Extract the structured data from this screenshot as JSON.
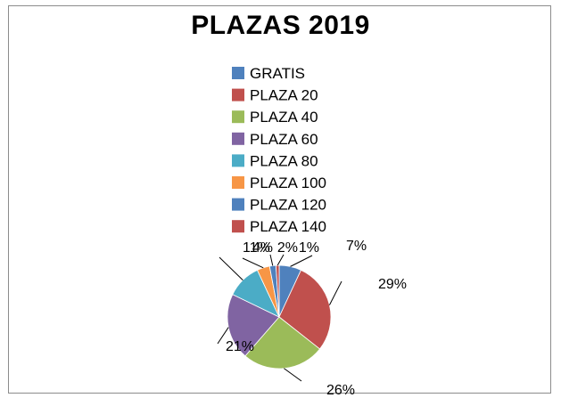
{
  "chart_data": {
    "type": "pie",
    "title": "PLAZAS 2019",
    "legend_position": "top-center",
    "categories": [
      "GRATIS",
      "PLAZA 20",
      "PLAZA 40",
      "PLAZA 60",
      "PLAZA 80",
      "PLAZA 100",
      "PLAZA 120",
      "PLAZA 140"
    ],
    "values": [
      7,
      29,
      26,
      21,
      11,
      4,
      2,
      1
    ],
    "labels": [
      "7%",
      "29%",
      "26%",
      "21%",
      "11%",
      "4%",
      "2%",
      "1%"
    ],
    "colors": [
      "#4F81BD",
      "#C0504D",
      "#9BBB59",
      "#8064A2",
      "#4BACC6",
      "#F79646",
      "#4F81BD",
      "#C0504D"
    ]
  }
}
